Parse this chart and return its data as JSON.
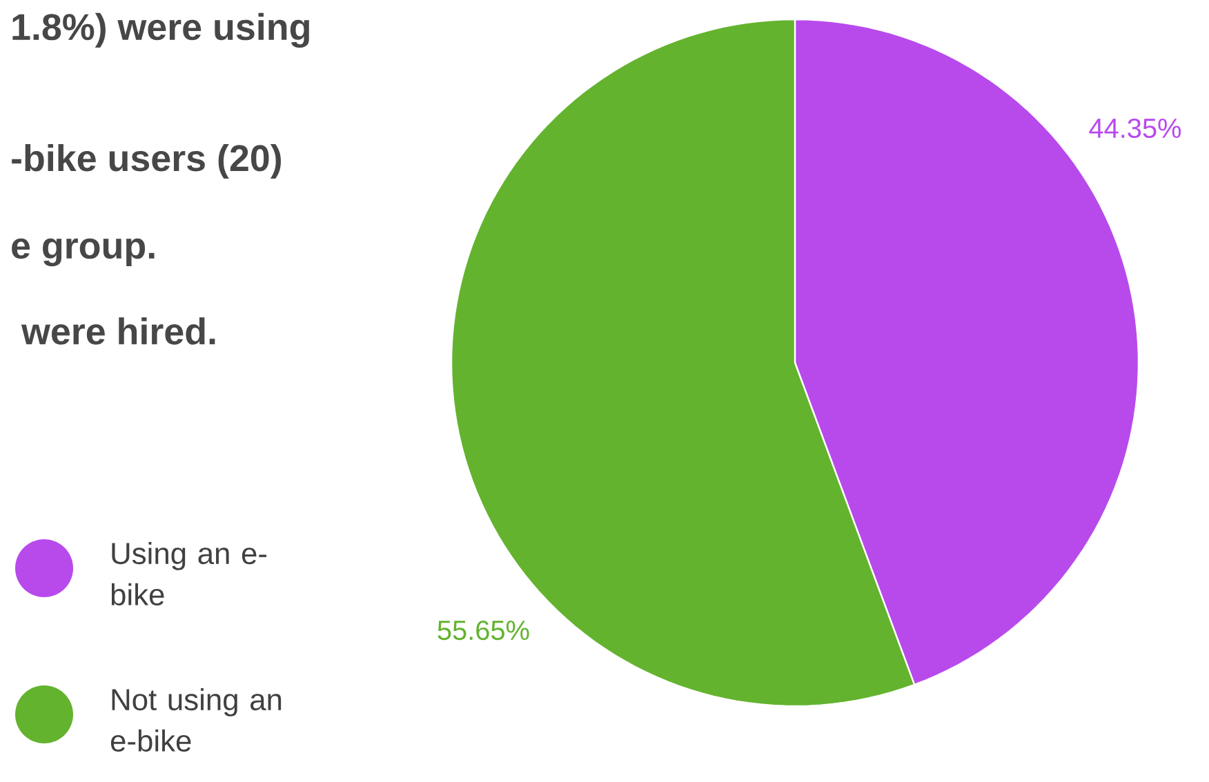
{
  "chart_data": {
    "type": "pie",
    "categories": [
      "Using an e-bike",
      "Not using an e-bike"
    ],
    "values": [
      44.35,
      55.65
    ],
    "colors": [
      "#b84aec",
      "#63b32e"
    ],
    "value_labels": [
      "44.35%",
      "55.65%"
    ],
    "legend": "bottom left",
    "annotations": [
      "1.8%) were using",
      "-bike users (20)",
      "e group.",
      "were hired."
    ]
  }
}
